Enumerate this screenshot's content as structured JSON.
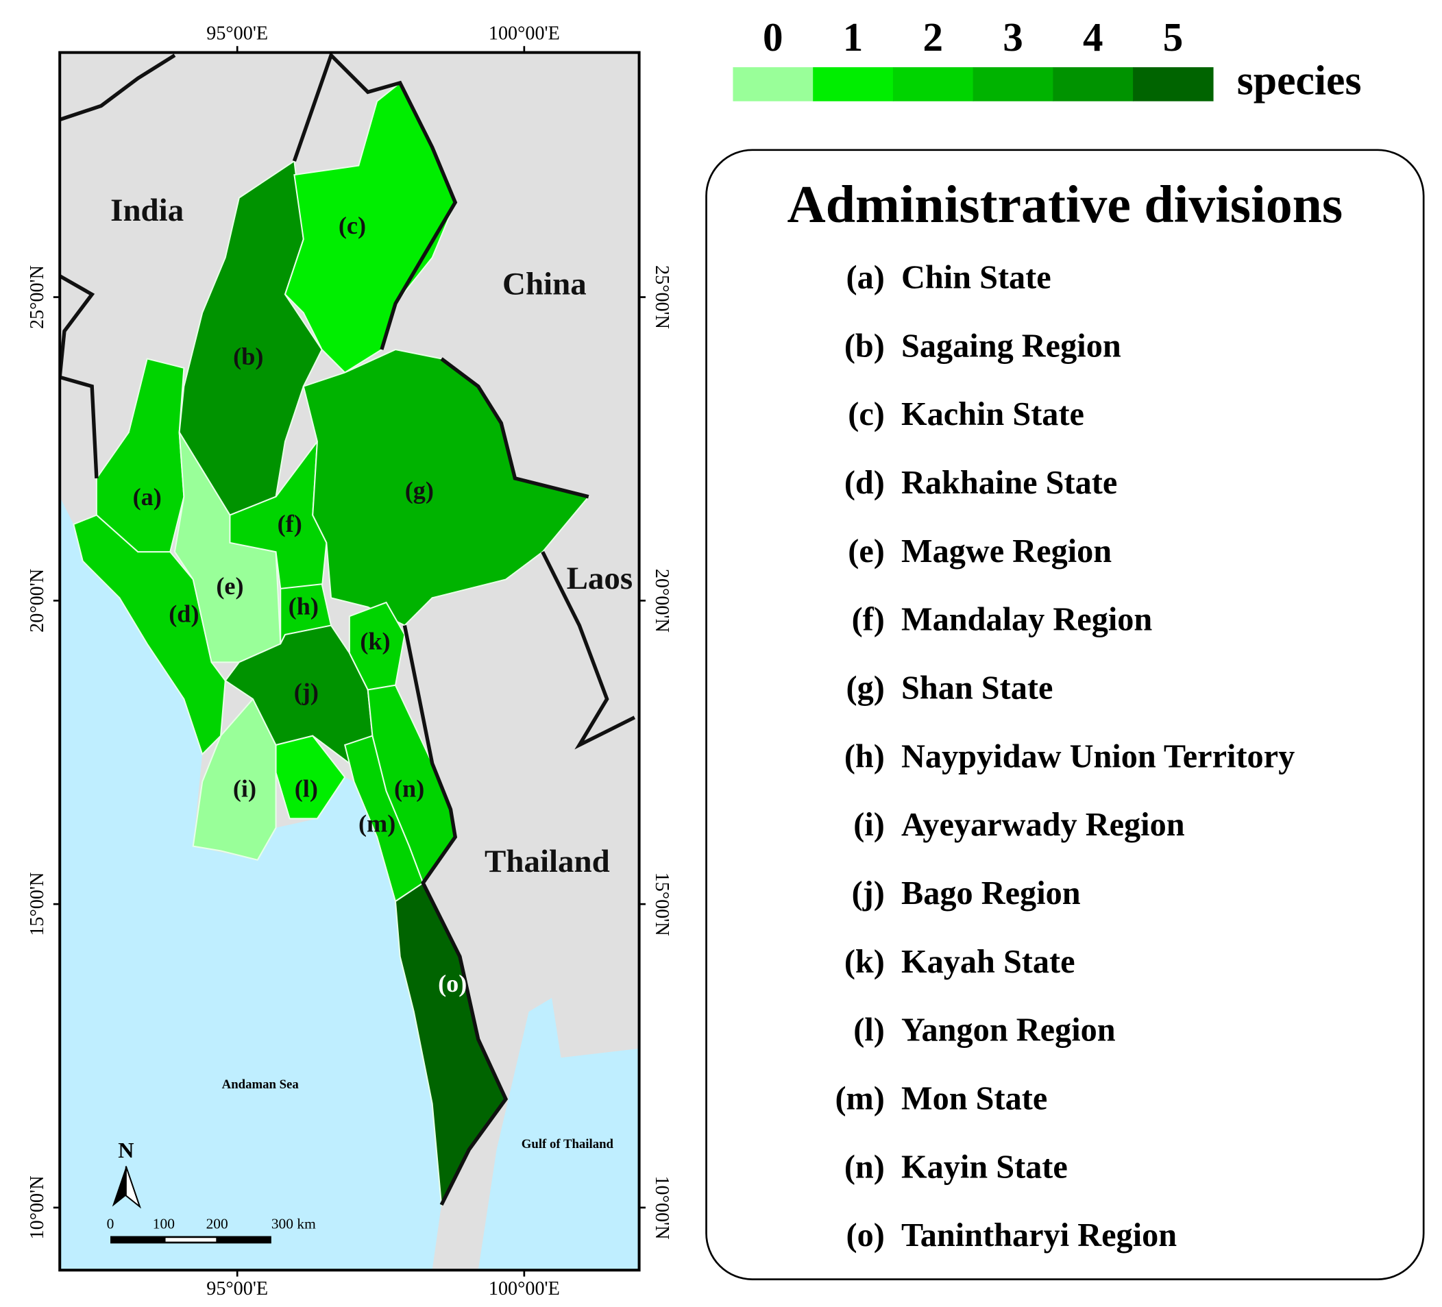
{
  "map": {
    "lon_labels": [
      "95°00'E",
      "100°00'E"
    ],
    "lat_labels": [
      "25°00'N",
      "20°00'N",
      "15°00'N",
      "10°00'N"
    ],
    "countries": [
      "India",
      "China",
      "Laos",
      "Thailand"
    ],
    "seas": [
      "Andaman Sea",
      "Gulf of Thailand"
    ],
    "north": "N",
    "scale_bar": [
      "0",
      "100",
      "200",
      "300 km"
    ]
  },
  "legend": {
    "values": [
      0,
      1,
      2,
      3,
      4,
      5
    ],
    "colors": [
      "#99ff99",
      "#00ee00",
      "#00d400",
      "#00b300",
      "#009300",
      "#006400"
    ],
    "unit": "species"
  },
  "divisions": {
    "title": "Administrative divisions",
    "items": [
      {
        "key": "(a)",
        "name": "Chin State",
        "species": 2
      },
      {
        "key": "(b)",
        "name": "Sagaing Region",
        "species": 4
      },
      {
        "key": "(c)",
        "name": "Kachin State",
        "species": 1
      },
      {
        "key": "(d)",
        "name": "Rakhaine State",
        "species": 2
      },
      {
        "key": "(e)",
        "name": "Magwe Region",
        "species": 0
      },
      {
        "key": "(f)",
        "name": "Mandalay Region",
        "species": 2
      },
      {
        "key": "(g)",
        "name": "Shan State",
        "species": 3
      },
      {
        "key": "(h)",
        "name": "Naypyidaw Union Territory",
        "species": 2
      },
      {
        "key": "(i)",
        "name": "Ayeyarwady Region",
        "species": 0
      },
      {
        "key": "(j)",
        "name": "Bago Region",
        "species": 4
      },
      {
        "key": "(k)",
        "name": "Kayah State",
        "species": 2
      },
      {
        "key": "(l)",
        "name": "Yangon Region",
        "species": 1
      },
      {
        "key": "(m)",
        "name": "Mon State",
        "species": 2
      },
      {
        "key": "(n)",
        "name": "Kayin State",
        "species": 2
      },
      {
        "key": "(o)",
        "name": "Tanintharyi Region",
        "species": 5
      }
    ]
  }
}
